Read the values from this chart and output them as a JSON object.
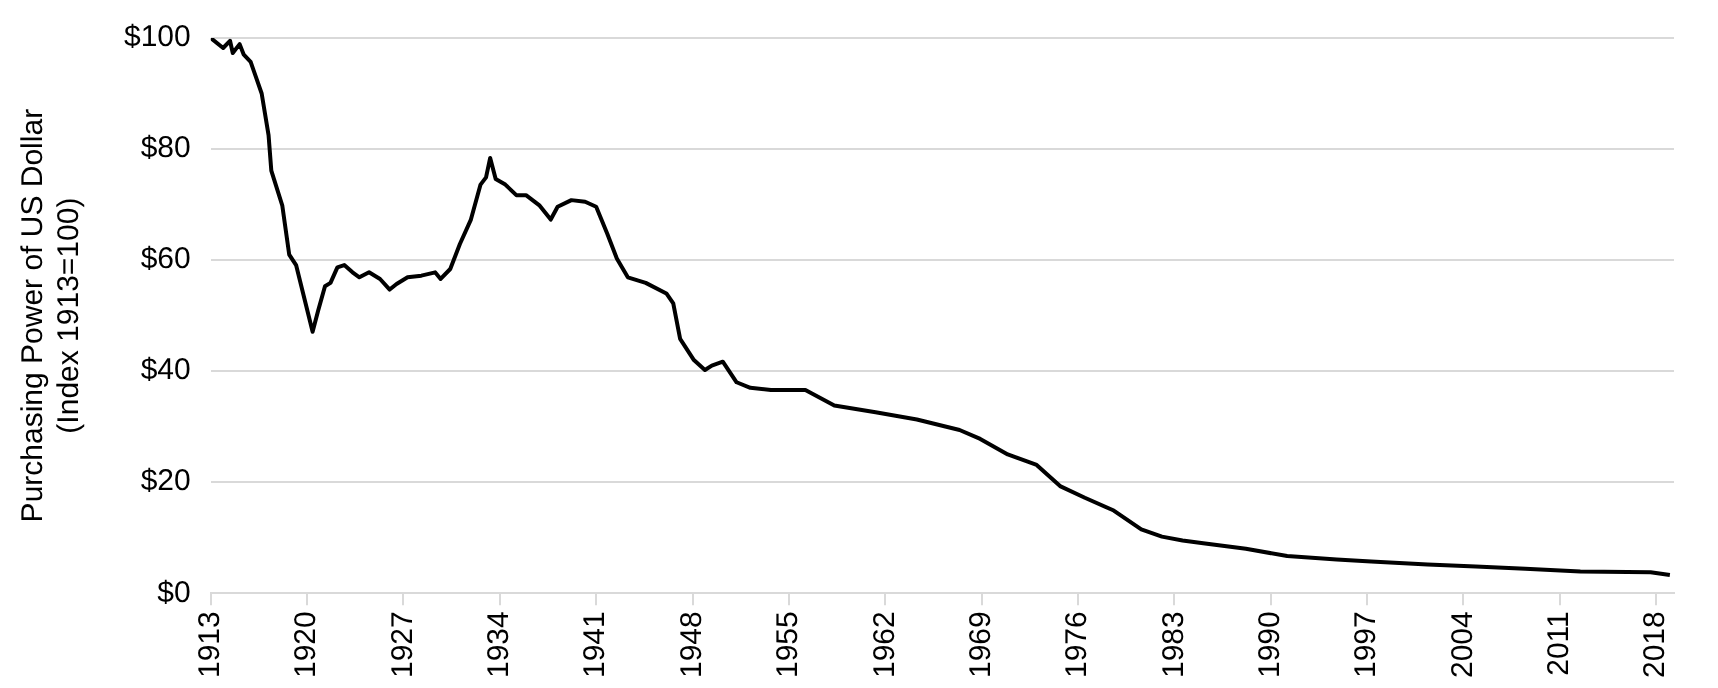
{
  "chart_data": {
    "type": "line",
    "ylabel": "Purchasing Power of US Dollar\n(Index 1913=100)",
    "xlim": [
      1913,
      2019.3
    ],
    "xticks": [
      1913,
      1920,
      1927,
      1934,
      1941,
      1948,
      1955,
      1962,
      1969,
      1976,
      1983,
      1990,
      1997,
      2004,
      2011,
      2018
    ],
    "ylim": [
      0,
      100
    ],
    "yticks": [
      {
        "value": 0,
        "label": "$0"
      },
      {
        "value": 20,
        "label": "$20"
      },
      {
        "value": 40,
        "label": "$40"
      },
      {
        "value": 60,
        "label": "$60"
      },
      {
        "value": 80,
        "label": "$80"
      },
      {
        "value": 100,
        "label": "$100"
      }
    ],
    "grid": "y",
    "legend": false,
    "marker": "none",
    "line_style": "solid",
    "series": [
      {
        "color": "#000000",
        "x": [
          1913,
          1913.9,
          1914.4,
          1914.6,
          1915.1,
          1915.4,
          1915.9,
          1916.7,
          1917.2,
          1917.4,
          1918.2,
          1918.7,
          1919.2,
          1920.4,
          1920.8,
          1921.3,
          1921.7,
          1922.2,
          1922.7,
          1923.3,
          1923.8,
          1924.5,
          1925.3,
          1926,
          1926.5,
          1927.3,
          1928.3,
          1929.3,
          1929.7,
          1930.4,
          1931.1,
          1931.9,
          1932.6,
          1933,
          1933.3,
          1933.7,
          1934.4,
          1935.2,
          1935.9,
          1936.9,
          1937.7,
          1938.2,
          1939.2,
          1940.2,
          1941,
          1941.8,
          1942.5,
          1943.3,
          1944.6,
          1946.1,
          1946.6,
          1947.1,
          1948.1,
          1948.9,
          1949.4,
          1950.2,
          1951.2,
          1952.2,
          1953.7,
          1956.2,
          1958.3,
          1961.3,
          1964.3,
          1967.4,
          1968.9,
          1970.9,
          1973,
          1974.7,
          1976.5,
          1978.6,
          1980.6,
          1982.1,
          1983.6,
          1985.1,
          1988.2,
          1991.2,
          1994.8,
          1997.3,
          2001.4,
          2004.9,
          2008.5,
          2012.5,
          2017.6,
          2019
        ],
        "values": [
          100,
          98.2,
          99.5,
          97.3,
          98.9,
          97,
          95.7,
          90,
          82.5,
          76.1,
          69.8,
          61,
          59.1,
          47.1,
          50.9,
          55.3,
          55.9,
          58.7,
          59.1,
          57.8,
          56.9,
          57.8,
          56.6,
          54.7,
          55.7,
          56.9,
          57.2,
          57.8,
          56.6,
          58.4,
          62.9,
          67.3,
          73.6,
          74.9,
          78.4,
          74.6,
          73.6,
          71.7,
          71.7,
          69.8,
          67.3,
          69.6,
          70.8,
          70.5,
          69.6,
          64.8,
          60.3,
          56.9,
          55.9,
          54,
          52.2,
          45.8,
          42,
          40.2,
          41,
          41.7,
          38,
          37,
          36.6,
          36.6,
          33.8,
          32.6,
          31.3,
          29.4,
          27.8,
          25,
          23.1,
          19.3,
          17.2,
          14.9,
          11.5,
          10.2,
          9.5,
          9,
          8,
          6.7,
          6.1,
          5.7,
          5.2,
          4.8,
          4.4,
          3.9,
          3.8,
          3.3
        ]
      }
    ]
  }
}
